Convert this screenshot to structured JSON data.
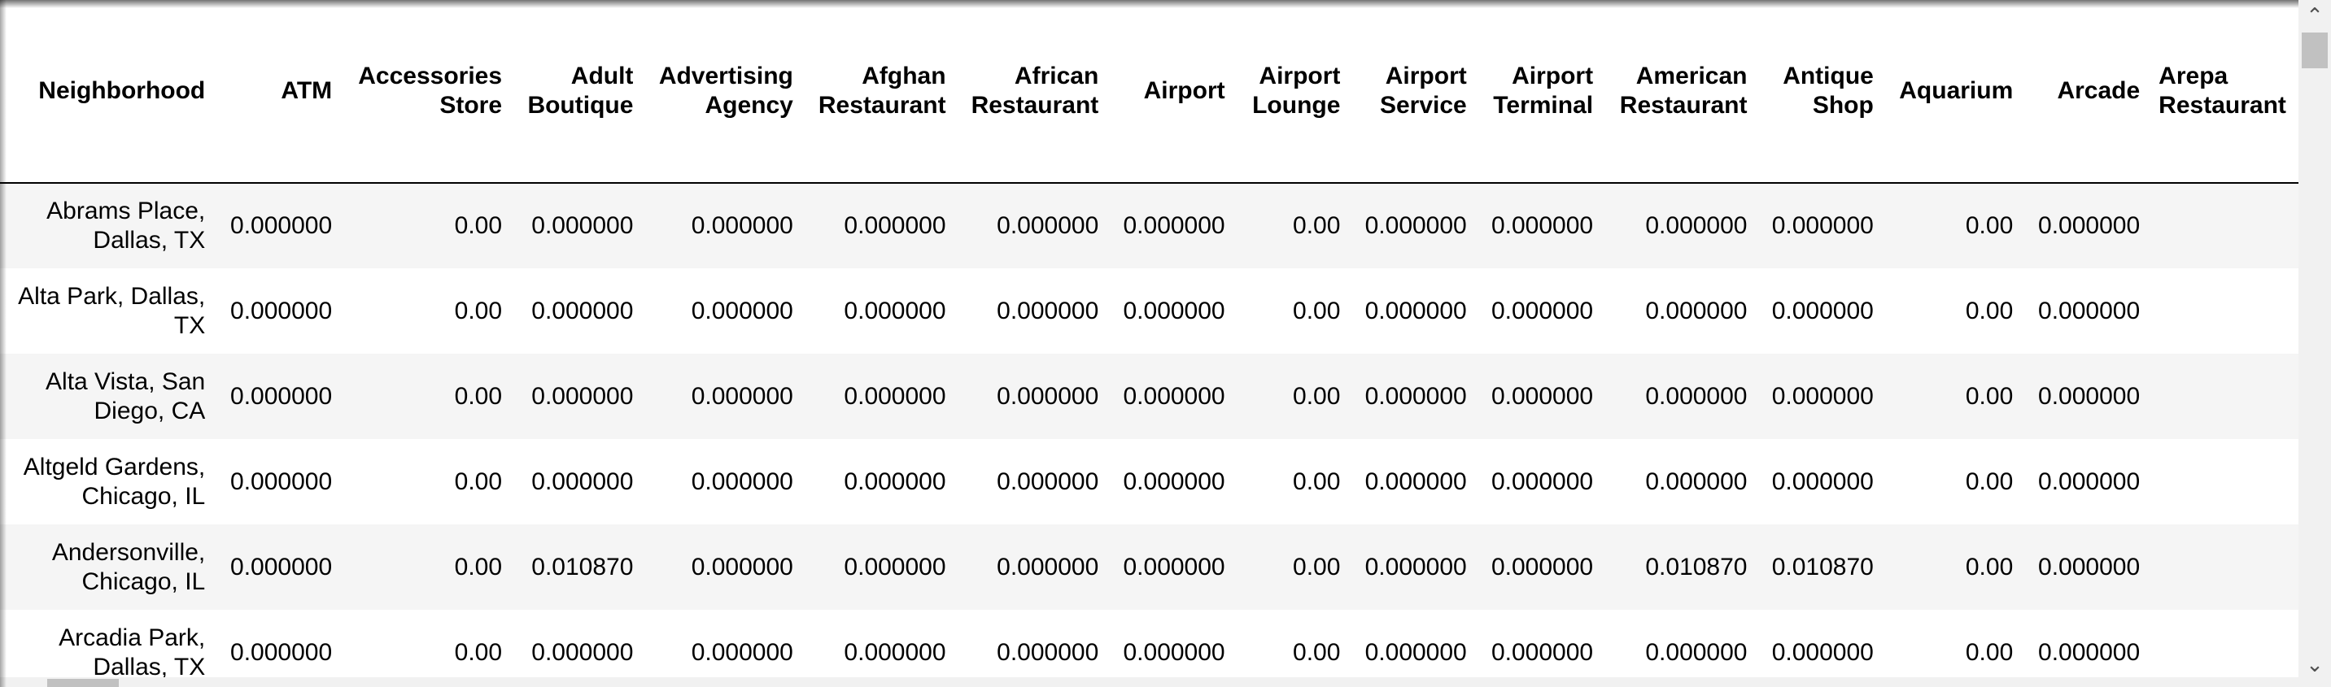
{
  "table": {
    "columns": [
      "Neighborhood",
      "ATM",
      "Accessories Store",
      "Adult Boutique",
      "Advertising Agency",
      "Afghan Restaurant",
      "African Restaurant",
      "Airport",
      "Airport Lounge",
      "Airport Service",
      "Airport Terminal",
      "American Restaurant",
      "Antique Shop",
      "Aquarium",
      "Arcade",
      "Arepa Restaurant"
    ],
    "rows": [
      {
        "neighborhood": "Abrams Place, Dallas, TX",
        "values": [
          "0.000000",
          "0.00",
          "0.000000",
          "0.000000",
          "0.000000",
          "0.000000",
          "0.000000",
          "0.00",
          "0.000000",
          "0.000000",
          "0.000000",
          "0.000000",
          "0.00",
          "0.000000"
        ]
      },
      {
        "neighborhood": "Alta Park, Dallas, TX",
        "values": [
          "0.000000",
          "0.00",
          "0.000000",
          "0.000000",
          "0.000000",
          "0.000000",
          "0.000000",
          "0.00",
          "0.000000",
          "0.000000",
          "0.000000",
          "0.000000",
          "0.00",
          "0.000000"
        ]
      },
      {
        "neighborhood": "Alta Vista, San Diego, CA",
        "values": [
          "0.000000",
          "0.00",
          "0.000000",
          "0.000000",
          "0.000000",
          "0.000000",
          "0.000000",
          "0.00",
          "0.000000",
          "0.000000",
          "0.000000",
          "0.000000",
          "0.00",
          "0.000000"
        ]
      },
      {
        "neighborhood": "Altgeld Gardens, Chicago, IL",
        "values": [
          "0.000000",
          "0.00",
          "0.000000",
          "0.000000",
          "0.000000",
          "0.000000",
          "0.000000",
          "0.00",
          "0.000000",
          "0.000000",
          "0.000000",
          "0.000000",
          "0.00",
          "0.000000"
        ]
      },
      {
        "neighborhood": "Andersonville, Chicago, IL",
        "values": [
          "0.000000",
          "0.00",
          "0.010870",
          "0.000000",
          "0.000000",
          "0.000000",
          "0.000000",
          "0.00",
          "0.000000",
          "0.000000",
          "0.010870",
          "0.010870",
          "0.00",
          "0.000000"
        ]
      },
      {
        "neighborhood": "Arcadia Park, Dallas, TX",
        "values": [
          "0.000000",
          "0.00",
          "0.000000",
          "0.000000",
          "0.000000",
          "0.000000",
          "0.000000",
          "0.00",
          "0.000000",
          "0.000000",
          "0.000000",
          "0.000000",
          "0.00",
          "0.000000"
        ]
      }
    ]
  },
  "scrollbar": {
    "up_icon": "chevron-up-icon",
    "down_icon": "chevron-down-icon"
  }
}
